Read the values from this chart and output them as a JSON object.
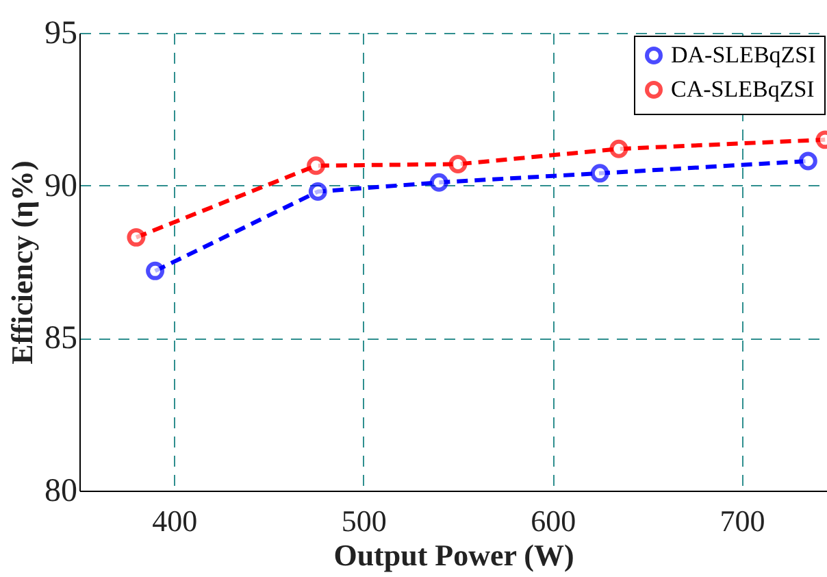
{
  "chart_data": {
    "type": "line",
    "xlabel": "Output Power (W)",
    "ylabel": "Efficiency (η%)",
    "series": [
      {
        "name": "DA-SLEBqZSI",
        "color": "#0000ff",
        "x": [
          390,
          476,
          540,
          625,
          735
        ],
        "values": [
          87.2,
          89.8,
          90.1,
          90.4,
          90.8
        ]
      },
      {
        "name": "CA-SLEBqZSI",
        "color": "#ff0000",
        "x": [
          380,
          475,
          550,
          635,
          744
        ],
        "values": [
          88.3,
          90.65,
          90.7,
          91.2,
          91.5
        ]
      }
    ],
    "xlim": [
      350,
      745
    ],
    "xticks": [
      400,
      500,
      600,
      700
    ],
    "ylim": [
      80,
      95
    ],
    "yticks": [
      80,
      85,
      90,
      95
    ],
    "grid": true,
    "legend": "top right",
    "marker": "circle",
    "line_style": "dashed"
  }
}
